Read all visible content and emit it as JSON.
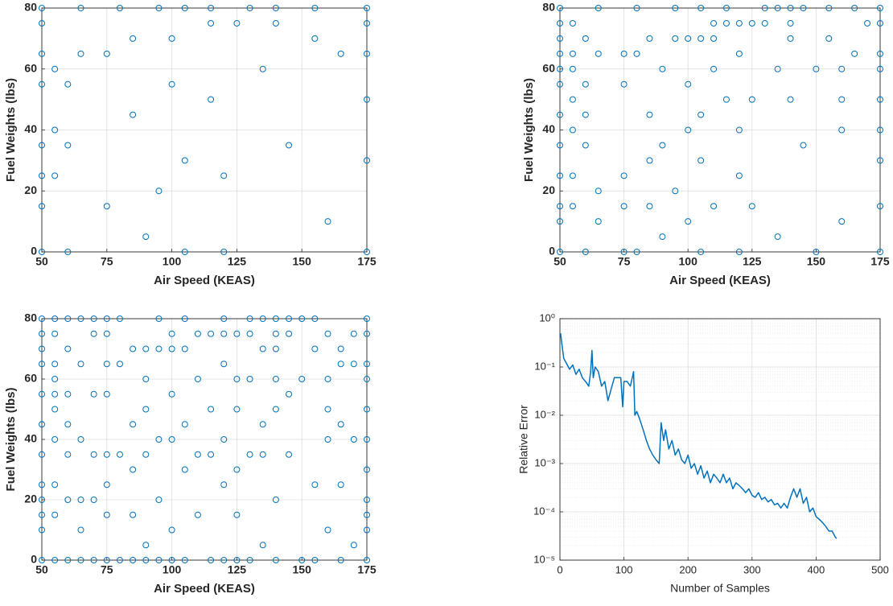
{
  "chart_data": [
    {
      "type": "scatter",
      "xlabel": "Air Speed (KEAS)",
      "ylabel": "Fuel Weights (lbs)",
      "color": "#0072bd",
      "grid": true,
      "xlim": [
        50,
        175
      ],
      "xticks": [
        50,
        75,
        100,
        125,
        150,
        175
      ],
      "ylim": [
        0,
        80
      ],
      "yticks": [
        0,
        20,
        40,
        60,
        80
      ],
      "x": [
        50,
        50,
        50,
        50,
        50,
        50,
        50,
        50,
        55,
        55,
        55,
        60,
        60,
        60,
        65,
        65,
        75,
        75,
        80,
        85,
        85,
        90,
        95,
        95,
        100,
        100,
        105,
        105,
        105,
        115,
        115,
        115,
        120,
        120,
        125,
        130,
        135,
        140,
        140,
        145,
        155,
        155,
        160,
        165,
        175,
        175,
        175,
        175,
        175,
        175
      ],
      "values": [
        80,
        75,
        65,
        55,
        35,
        25,
        15,
        0,
        60,
        40,
        25,
        55,
        35,
        0,
        80,
        65,
        65,
        15,
        80,
        70,
        45,
        5,
        80,
        20,
        70,
        55,
        80,
        30,
        0,
        80,
        75,
        50,
        25,
        0,
        75,
        80,
        60,
        80,
        75,
        35,
        80,
        70,
        10,
        65,
        80,
        75,
        65,
        50,
        30,
        0
      ]
    },
    {
      "type": "scatter",
      "xlabel": "Air Speed (KEAS)",
      "ylabel": "Fuel Weights (lbs)",
      "color": "#0072bd",
      "grid": true,
      "xlim": [
        50,
        175
      ],
      "xticks": [
        50,
        75,
        100,
        125,
        150,
        175
      ],
      "ylim": [
        0,
        80
      ],
      "yticks": [
        0,
        20,
        40,
        60,
        80
      ],
      "x": [
        50,
        50,
        50,
        50,
        50,
        50,
        50,
        50,
        50,
        50,
        50,
        50,
        55,
        55,
        55,
        55,
        55,
        55,
        55,
        60,
        60,
        60,
        60,
        60,
        65,
        65,
        65,
        65,
        75,
        75,
        75,
        75,
        75,
        80,
        80,
        80,
        85,
        85,
        85,
        85,
        90,
        90,
        90,
        95,
        95,
        95,
        100,
        100,
        100,
        100,
        105,
        105,
        105,
        105,
        105,
        110,
        110,
        110,
        110,
        115,
        115,
        115,
        120,
        120,
        120,
        120,
        120,
        125,
        125,
        125,
        130,
        130,
        135,
        135,
        135,
        140,
        140,
        140,
        140,
        145,
        145,
        150,
        150,
        155,
        155,
        160,
        160,
        160,
        160,
        165,
        165,
        170,
        175,
        175,
        175,
        175,
        175,
        175,
        175,
        175,
        175
      ],
      "values": [
        80,
        75,
        70,
        65,
        60,
        55,
        45,
        35,
        25,
        15,
        10,
        0,
        75,
        65,
        60,
        50,
        40,
        25,
        15,
        70,
        55,
        45,
        35,
        0,
        80,
        65,
        20,
        10,
        65,
        55,
        25,
        15,
        0,
        80,
        65,
        0,
        70,
        45,
        30,
        15,
        60,
        35,
        5,
        80,
        70,
        20,
        70,
        55,
        40,
        10,
        80,
        70,
        45,
        30,
        0,
        75,
        70,
        60,
        15,
        80,
        75,
        50,
        75,
        65,
        40,
        25,
        0,
        75,
        50,
        15,
        80,
        75,
        80,
        60,
        5,
        80,
        75,
        70,
        50,
        80,
        35,
        60,
        0,
        80,
        70,
        60,
        50,
        40,
        10,
        80,
        65,
        75,
        80,
        75,
        65,
        60,
        50,
        40,
        30,
        15,
        0
      ]
    },
    {
      "type": "scatter",
      "xlabel": "Air Speed (KEAS)",
      "ylabel": "Fuel Weights (lbs)",
      "color": "#0072bd",
      "grid": true,
      "xlim": [
        50,
        175
      ],
      "xticks": [
        50,
        75,
        100,
        125,
        150,
        175
      ],
      "ylim": [
        0,
        80
      ],
      "yticks": [
        0,
        20,
        40,
        60,
        80
      ],
      "x": [
        50,
        50,
        50,
        50,
        50,
        50,
        50,
        50,
        50,
        50,
        50,
        50,
        55,
        55,
        55,
        55,
        55,
        55,
        55,
        55,
        55,
        55,
        60,
        60,
        60,
        60,
        60,
        60,
        60,
        65,
        65,
        65,
        65,
        65,
        65,
        70,
        70,
        70,
        70,
        70,
        70,
        75,
        75,
        75,
        75,
        75,
        75,
        75,
        75,
        80,
        80,
        80,
        80,
        85,
        85,
        85,
        85,
        85,
        90,
        90,
        90,
        90,
        90,
        90,
        95,
        95,
        95,
        95,
        95,
        100,
        100,
        100,
        100,
        100,
        100,
        105,
        105,
        105,
        105,
        105,
        110,
        110,
        110,
        110,
        115,
        115,
        115,
        115,
        120,
        120,
        120,
        120,
        120,
        120,
        125,
        125,
        125,
        125,
        125,
        125,
        130,
        130,
        130,
        130,
        130,
        135,
        135,
        135,
        135,
        135,
        140,
        140,
        140,
        140,
        140,
        140,
        140,
        145,
        145,
        145,
        145,
        150,
        150,
        150,
        155,
        155,
        155,
        155,
        160,
        160,
        160,
        160,
        160,
        165,
        165,
        165,
        165,
        165,
        170,
        170,
        170,
        170,
        175,
        175,
        175,
        175,
        175,
        175,
        175,
        175,
        175,
        175,
        175
      ],
      "values": [
        80,
        75,
        70,
        65,
        55,
        45,
        35,
        25,
        20,
        15,
        10,
        0,
        80,
        75,
        65,
        60,
        55,
        50,
        40,
        25,
        15,
        0,
        80,
        70,
        55,
        45,
        35,
        20,
        0,
        80,
        65,
        40,
        20,
        10,
        0,
        80,
        75,
        55,
        35,
        20,
        0,
        80,
        75,
        65,
        55,
        35,
        25,
        15,
        0,
        80,
        65,
        35,
        0,
        70,
        45,
        30,
        15,
        0,
        70,
        60,
        50,
        35,
        5,
        0,
        80,
        70,
        40,
        20,
        0,
        75,
        70,
        55,
        40,
        10,
        0,
        80,
        70,
        45,
        30,
        0,
        75,
        60,
        35,
        15,
        75,
        50,
        35,
        0,
        80,
        75,
        65,
        40,
        25,
        0,
        75,
        60,
        50,
        30,
        15,
        0,
        80,
        75,
        60,
        35,
        0,
        80,
        70,
        45,
        35,
        5,
        80,
        75,
        70,
        60,
        50,
        20,
        0,
        80,
        75,
        55,
        35,
        80,
        60,
        0,
        80,
        70,
        25,
        0,
        75,
        60,
        50,
        40,
        10,
        70,
        65,
        45,
        25,
        0,
        75,
        65,
        40,
        5,
        80,
        75,
        65,
        60,
        50,
        40,
        30,
        20,
        15,
        10,
        0
      ]
    },
    {
      "type": "line",
      "xlabel": "Number of Samples",
      "ylabel": "Relative Error",
      "color": "#0072bd",
      "grid": true,
      "minor_grid": true,
      "yscale": "log",
      "xlim": [
        0,
        500
      ],
      "xticks": [
        0,
        100,
        200,
        300,
        400,
        500
      ],
      "ylim": [
        1e-05,
        1
      ],
      "yticks": [
        {
          "value": 1e-05,
          "label": "10⁻⁵"
        },
        {
          "value": 0.0001,
          "label": "10⁻⁴"
        },
        {
          "value": 0.001,
          "label": "10⁻³"
        },
        {
          "value": 0.01,
          "label": "10⁻²"
        },
        {
          "value": 0.1,
          "label": "10⁻¹"
        },
        {
          "value": 1,
          "label": "10⁰"
        }
      ],
      "x": [
        1,
        3,
        6,
        10,
        15,
        20,
        25,
        30,
        35,
        40,
        45,
        48,
        50,
        52,
        55,
        60,
        65,
        70,
        75,
        80,
        85,
        90,
        95,
        98,
        100,
        105,
        110,
        115,
        117,
        120,
        125,
        130,
        135,
        140,
        145,
        150,
        155,
        158,
        162,
        165,
        170,
        175,
        180,
        185,
        190,
        195,
        200,
        205,
        210,
        215,
        220,
        225,
        230,
        235,
        240,
        245,
        250,
        255,
        260,
        265,
        270,
        275,
        280,
        285,
        290,
        295,
        300,
        305,
        310,
        315,
        320,
        325,
        330,
        335,
        340,
        345,
        350,
        355,
        360,
        365,
        370,
        375,
        380,
        385,
        390,
        395,
        400,
        405,
        410,
        415,
        420,
        425,
        430,
        432
      ],
      "values": [
        0.5,
        0.3,
        0.15,
        0.12,
        0.09,
        0.11,
        0.07,
        0.09,
        0.06,
        0.05,
        0.04,
        0.08,
        0.22,
        0.06,
        0.1,
        0.08,
        0.04,
        0.05,
        0.02,
        0.035,
        0.06,
        0.06,
        0.06,
        0.015,
        0.05,
        0.05,
        0.04,
        0.08,
        0.01,
        0.012,
        0.008,
        0.005,
        0.003,
        0.002,
        0.0015,
        0.0012,
        0.001,
        0.007,
        0.003,
        0.005,
        0.002,
        0.003,
        0.0015,
        0.002,
        0.0012,
        0.001,
        0.0015,
        0.0008,
        0.001,
        0.0006,
        0.0009,
        0.0005,
        0.0007,
        0.0004,
        0.0006,
        0.0005,
        0.0004,
        0.0006,
        0.0004,
        0.0005,
        0.0003,
        0.0004,
        0.00035,
        0.0003,
        0.00025,
        0.0003,
        0.00022,
        0.0002,
        0.00025,
        0.00018,
        0.0002,
        0.00016,
        0.00018,
        0.00014,
        0.00015,
        0.00012,
        0.00015,
        0.00012,
        0.0002,
        0.0003,
        0.0002,
        0.0003,
        0.00015,
        0.0002,
        0.0001,
        0.00012,
        8e-05,
        7e-05,
        6e-05,
        5e-05,
        4e-05,
        4e-05,
        3e-05,
        2.8e-05
      ]
    }
  ]
}
